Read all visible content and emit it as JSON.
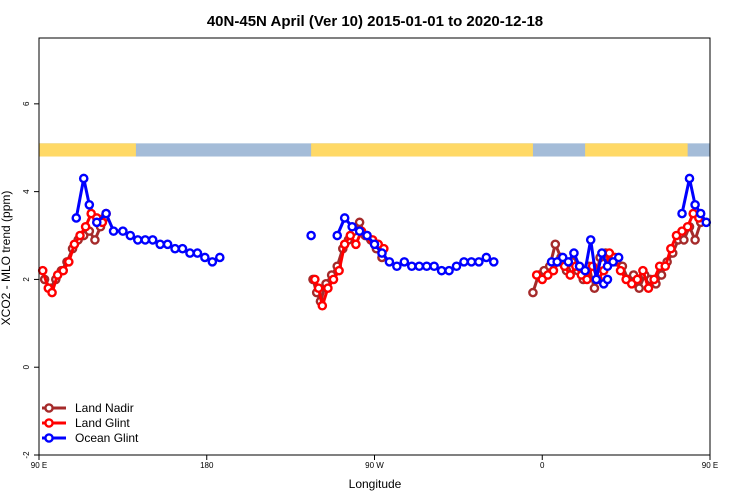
{
  "chart_data": {
    "type": "line",
    "title": "40N-45N April (Ver 10)   2015-01-01 to 2020-12-18",
    "xlabel": "Longitude",
    "ylabel": "XCO2 - MLO trend (ppm)",
    "xlim": [
      90,
      450
    ],
    "ylim": [
      -2.0,
      7.5
    ],
    "x_ticks": [
      {
        "value": 90,
        "label": "90 E"
      },
      {
        "value": 180,
        "label": "180"
      },
      {
        "value": 270,
        "label": "90 W"
      },
      {
        "value": 360,
        "label": "0"
      },
      {
        "value": 450,
        "label": "90 E"
      }
    ],
    "y_ticks": [
      {
        "value": -2,
        "label": "-2"
      },
      {
        "value": 0,
        "label": "0"
      },
      {
        "value": 2,
        "label": "2"
      },
      {
        "value": 4,
        "label": "4"
      },
      {
        "value": 6,
        "label": "6"
      }
    ],
    "legend_position": "bottom-left",
    "colors": {
      "land_nadir": "#a52a2a",
      "land_glint": "#ff0000",
      "ocean_glint": "#0000ff",
      "land_band": "#ffd966",
      "ocean_band": "#a4bcd8"
    },
    "band": {
      "y_range": [
        4.8,
        5.1
      ],
      "land_segments": [
        [
          90,
          142
        ],
        [
          236,
          355
        ],
        [
          383,
          438
        ]
      ]
    },
    "series": [
      {
        "name": "Land Nadir",
        "key": "land_nadir",
        "segments": [
          [
            [
              93,
              2.0
            ],
            [
              96,
              1.8
            ],
            [
              99,
              2.0
            ],
            [
              102,
              2.2
            ],
            [
              105,
              2.4
            ],
            [
              108,
              2.7
            ],
            [
              111,
              2.9
            ],
            [
              114,
              3.0
            ],
            [
              117,
              3.1
            ],
            [
              120,
              2.9
            ],
            [
              123,
              3.2
            ],
            [
              125,
              3.4
            ]
          ],
          [
            [
              237,
              2.0
            ],
            [
              239,
              1.7
            ],
            [
              241,
              1.5
            ],
            [
              244,
              1.9
            ],
            [
              247,
              2.1
            ],
            [
              250,
              2.3
            ],
            [
              253,
              2.7
            ],
            [
              256,
              2.9
            ],
            [
              259,
              3.1
            ],
            [
              262,
              3.3
            ],
            [
              265,
              3.0
            ],
            [
              268,
              2.9
            ],
            [
              271,
              2.7
            ],
            [
              274,
              2.5
            ]
          ],
          [
            [
              355,
              1.7
            ],
            [
              358,
              2.1
            ],
            [
              361,
              2.2
            ],
            [
              364,
              2.3
            ],
            [
              367,
              2.8
            ],
            [
              370,
              2.5
            ],
            [
              373,
              2.2
            ],
            [
              376,
              2.4
            ],
            [
              379,
              2.2
            ],
            [
              382,
              2.0
            ],
            [
              385,
              2.3
            ],
            [
              388,
              1.8
            ],
            [
              391,
              2.5
            ],
            [
              394,
              2.6
            ],
            [
              397,
              2.4
            ],
            [
              400,
              2.4
            ],
            [
              403,
              2.3
            ],
            [
              406,
              2.0
            ],
            [
              409,
              2.1
            ],
            [
              412,
              1.8
            ],
            [
              415,
              2.1
            ],
            [
              418,
              2.0
            ],
            [
              421,
              1.9
            ],
            [
              424,
              2.1
            ],
            [
              427,
              2.4
            ],
            [
              430,
              2.6
            ],
            [
              433,
              2.9
            ],
            [
              436,
              2.9
            ],
            [
              439,
              3.2
            ],
            [
              442,
              2.9
            ],
            [
              445,
              3.3
            ]
          ]
        ]
      },
      {
        "name": "Land Glint",
        "key": "land_glint",
        "segments": [
          [
            [
              92,
              2.2
            ],
            [
              95,
              1.8
            ],
            [
              97,
              1.7
            ],
            [
              100,
              2.1
            ],
            [
              103,
              2.2
            ],
            [
              106,
              2.4
            ],
            [
              109,
              2.8
            ],
            [
              112,
              3.0
            ],
            [
              115,
              3.2
            ],
            [
              118,
              3.5
            ],
            [
              121,
              3.4
            ],
            [
              124,
              3.3
            ],
            [
              126,
              3.5
            ]
          ],
          [
            [
              238,
              2.0
            ],
            [
              240,
              1.8
            ],
            [
              242,
              1.4
            ],
            [
              245,
              1.8
            ],
            [
              248,
              2.0
            ],
            [
              251,
              2.2
            ],
            [
              254,
              2.8
            ],
            [
              257,
              3.0
            ],
            [
              260,
              2.8
            ],
            [
              263,
              3.1
            ],
            [
              266,
              3.0
            ],
            [
              269,
              2.9
            ],
            [
              272,
              2.8
            ],
            [
              275,
              2.7
            ]
          ],
          [
            [
              357,
              2.1
            ],
            [
              360,
              2.0
            ],
            [
              363,
              2.1
            ],
            [
              366,
              2.2
            ],
            [
              369,
              2.4
            ],
            [
              372,
              2.3
            ],
            [
              375,
              2.1
            ],
            [
              378,
              2.3
            ],
            [
              381,
              2.1
            ],
            [
              384,
              2.0
            ],
            [
              387,
              2.3
            ],
            [
              390,
              2.0
            ],
            [
              393,
              2.2
            ],
            [
              396,
              2.6
            ],
            [
              399,
              2.5
            ],
            [
              402,
              2.2
            ],
            [
              405,
              2.0
            ],
            [
              408,
              1.9
            ],
            [
              411,
              2.0
            ],
            [
              414,
              2.2
            ],
            [
              417,
              1.8
            ],
            [
              420,
              2.0
            ],
            [
              423,
              2.3
            ],
            [
              426,
              2.3
            ],
            [
              429,
              2.7
            ],
            [
              432,
              3.0
            ],
            [
              435,
              3.1
            ],
            [
              438,
              3.2
            ],
            [
              441,
              3.5
            ],
            [
              444,
              3.4
            ]
          ]
        ]
      },
      {
        "name": "Ocean Glint",
        "key": "ocean_glint",
        "segments": [
          [
            [
              121,
              3.3
            ],
            [
              126,
              3.5
            ],
            [
              130,
              3.1
            ],
            [
              135,
              3.1
            ],
            [
              139,
              3.0
            ],
            [
              143,
              2.9
            ],
            [
              147,
              2.9
            ],
            [
              151,
              2.9
            ],
            [
              155,
              2.8
            ],
            [
              159,
              2.8
            ],
            [
              163,
              2.7
            ],
            [
              167,
              2.7
            ],
            [
              171,
              2.6
            ],
            [
              175,
              2.6
            ],
            [
              179,
              2.5
            ],
            [
              183,
              2.4
            ],
            [
              187,
              2.5
            ]
          ],
          [
            [
              250,
              3.0
            ],
            [
              254,
              3.4
            ],
            [
              258,
              3.2
            ],
            [
              262,
              3.1
            ],
            [
              266,
              3.0
            ],
            [
              270,
              2.8
            ],
            [
              274,
              2.6
            ],
            [
              278,
              2.4
            ],
            [
              282,
              2.3
            ],
            [
              286,
              2.4
            ],
            [
              290,
              2.3
            ],
            [
              294,
              2.3
            ],
            [
              298,
              2.3
            ],
            [
              302,
              2.3
            ],
            [
              306,
              2.2
            ],
            [
              310,
              2.2
            ],
            [
              314,
              2.3
            ],
            [
              318,
              2.4
            ],
            [
              322,
              2.4
            ],
            [
              326,
              2.4
            ],
            [
              330,
              2.5
            ],
            [
              334,
              2.4
            ]
          ],
          [
            [
              365,
              2.4
            ],
            [
              368,
              2.4
            ],
            [
              371,
              2.5
            ],
            [
              374,
              2.4
            ],
            [
              377,
              2.6
            ],
            [
              380,
              2.3
            ],
            [
              383,
              2.2
            ],
            [
              386,
              2.9
            ],
            [
              389,
              2.0
            ],
            [
              392,
              2.6
            ],
            [
              395,
              2.3
            ],
            [
              398,
              2.4
            ],
            [
              401,
              2.5
            ]
          ],
          [
            [
              435,
              3.5
            ],
            [
              439,
              4.3
            ],
            [
              442,
              3.7
            ],
            [
              445,
              3.5
            ],
            [
              448,
              3.3
            ]
          ]
        ]
      }
    ],
    "extra_points": {
      "ocean_glint": [
        [
          110,
          3.4
        ],
        [
          114,
          4.3
        ],
        [
          117,
          3.7
        ],
        [
          236,
          3.0
        ],
        [
          393,
          1.9
        ],
        [
          395,
          2.0
        ]
      ]
    }
  }
}
